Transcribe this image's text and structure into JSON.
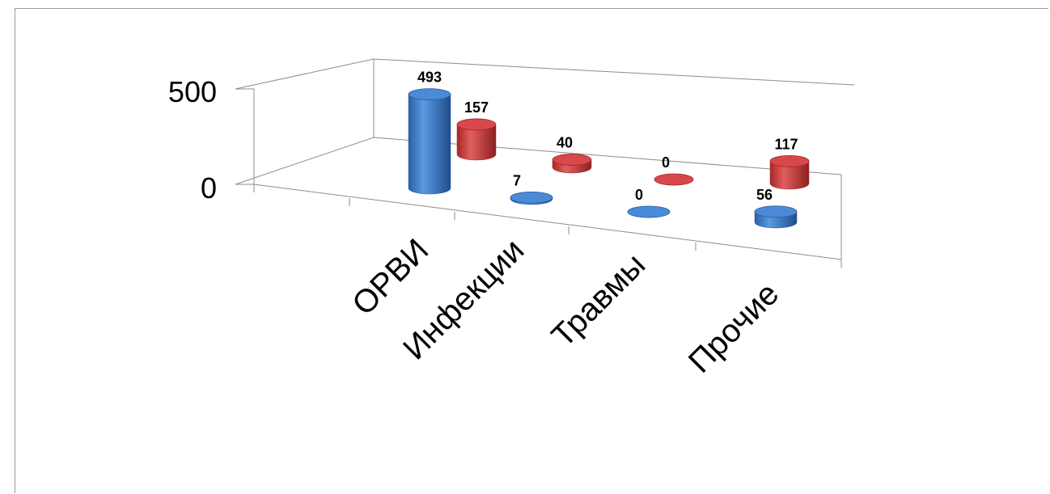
{
  "chart_data": {
    "type": "bar",
    "subtype": "3d-cylinder",
    "categories": [
      "ОРВИ",
      "Инфекции",
      "Травмы",
      "Прочие"
    ],
    "series": [
      {
        "values": [
          493,
          7,
          0,
          56
        ],
        "color": "#3c7ccc"
      },
      {
        "values": [
          157,
          40,
          0,
          117
        ],
        "color": "#d0393a"
      }
    ],
    "y_ticks": [
      "0",
      "500"
    ],
    "ylim": [
      0,
      500
    ],
    "title": "",
    "xlabel": "",
    "ylabel": "",
    "grid": true,
    "legend": "none"
  }
}
